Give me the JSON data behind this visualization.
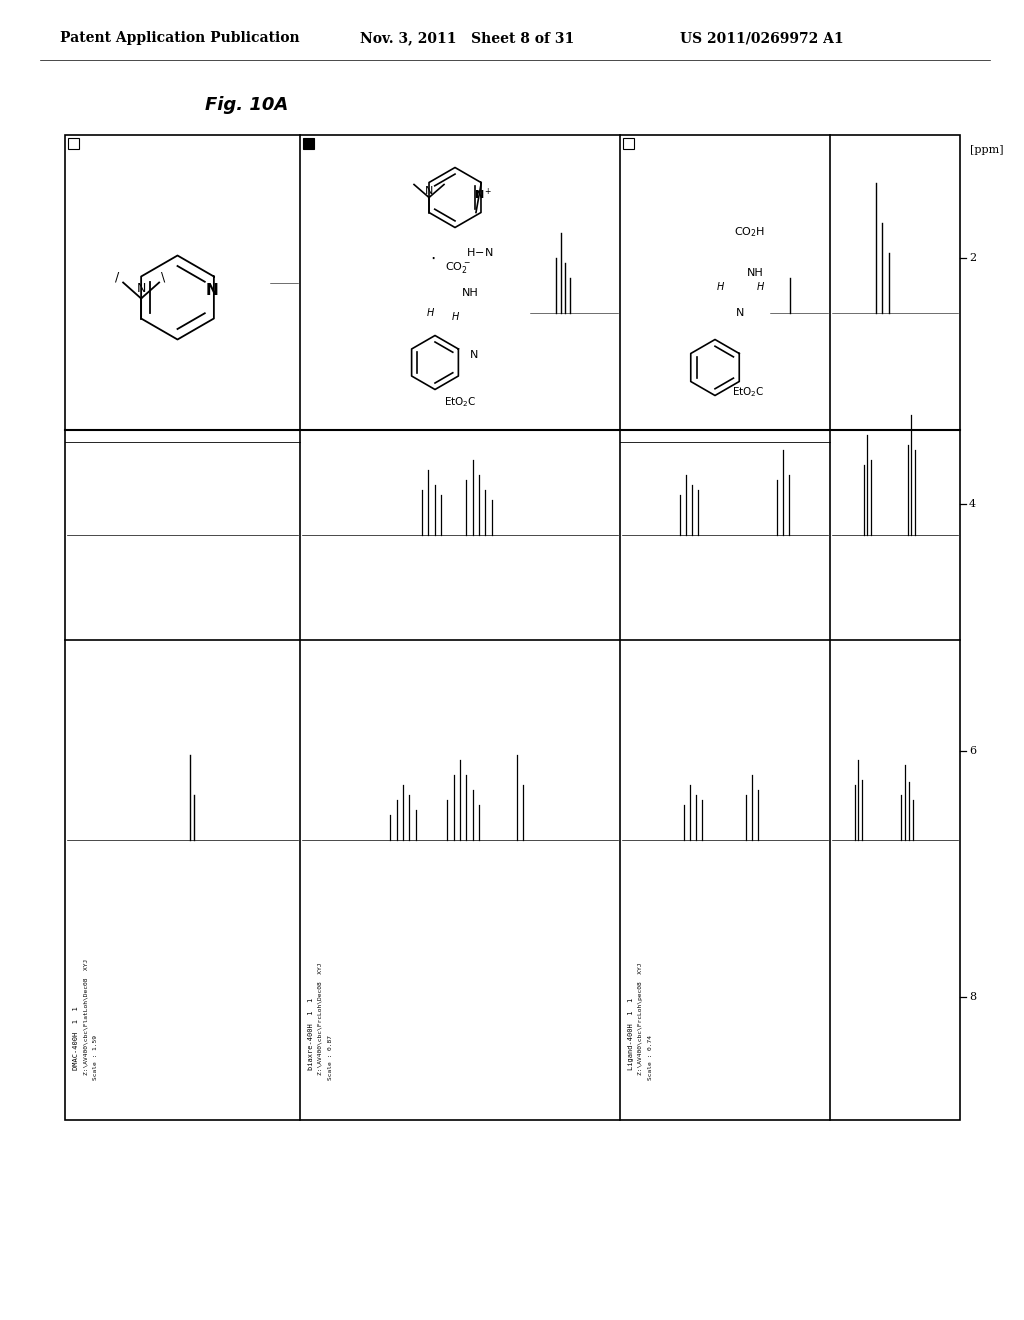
{
  "page_header_left": "Patent Application Publication",
  "page_header_mid": "Nov. 3, 2011   Sheet 8 of 31",
  "page_header_right": "US 2011/0269972 A1",
  "figure_label": "Fig. 10A",
  "background_color": "#ffffff",
  "axis_label_ppm": "[ppm]",
  "col1_instrument": "DMAC-400H  1  1",
  "col1_label_text": "Z:\\AV400\\cbc\\FlatLoh\\Dec08  XYJ",
  "col1_scale": "Scale : 1.59",
  "col2_instrument": "biaxre-400H  1  1",
  "col2_label_text": "Z:\\AV400\\cbc\\FrcLoh\\Dec08  XYJ",
  "col2_scale": "Scale : 0.87",
  "col3_instrument": "Ligand-400H  1  1",
  "col3_label_text": "Z:\\AV400\\cbc\\FrcLoh\\pec08  XYJ",
  "col3_scale": "Scale : 0.74"
}
